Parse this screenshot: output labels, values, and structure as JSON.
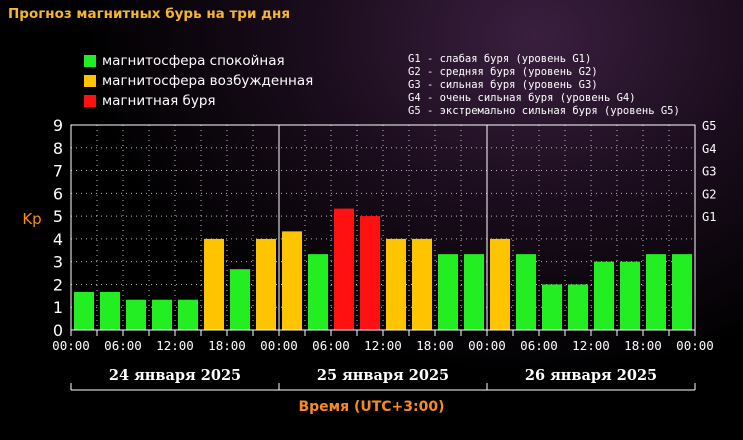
{
  "title": "Прогноз магнитных бурь на три дня",
  "legend": [
    {
      "label": "магнитосфера спокойная",
      "color": "#22ee22"
    },
    {
      "label": "магнитосфера возбужденная",
      "color": "#ffc400"
    },
    {
      "label": "магнитная буря",
      "color": "#ff1111"
    }
  ],
  "g_legend": [
    "G1 - слабая буря (уровень G1)",
    "G2 - средняя буря (уровень G2)",
    "G3 - сильная буря (уровень G3)",
    "G4 - очень сильная буря (уровень G4)",
    "G5 - экстремально сильная буря (уровень G5)"
  ],
  "chart_data": {
    "type": "bar",
    "ylabel": "Kp",
    "xlabel": "Время (UTC+3:00)",
    "ylim": [
      0,
      9
    ],
    "y_ticks": [
      "0",
      "1",
      "2",
      "3",
      "4",
      "5",
      "6",
      "7",
      "8",
      "9"
    ],
    "g_ticks": [
      {
        "label": "G1",
        "value": 5
      },
      {
        "label": "G2",
        "value": 6
      },
      {
        "label": "G3",
        "value": 7
      },
      {
        "label": "G4",
        "value": 8
      },
      {
        "label": "G5",
        "value": 9
      }
    ],
    "x_tick_labels": [
      "00:00",
      "06:00",
      "12:00",
      "18:00",
      "00:00",
      "06:00",
      "12:00",
      "18:00",
      "00:00",
      "06:00",
      "12:00",
      "18:00",
      "00:00"
    ],
    "days": [
      "24 января 2025",
      "25 января 2025",
      "26 января 2025"
    ],
    "values": [
      1.67,
      1.67,
      1.33,
      1.33,
      1.33,
      4.0,
      2.67,
      4.0,
      4.33,
      3.33,
      5.33,
      5.0,
      4.0,
      4.0,
      3.33,
      3.33,
      4.0,
      3.33,
      2.0,
      2.0,
      3.0,
      3.0,
      3.33,
      3.33
    ],
    "colors": {
      "quiet": "#22ee22",
      "active": "#ffc400",
      "storm": "#ff1111"
    },
    "grid": true
  }
}
